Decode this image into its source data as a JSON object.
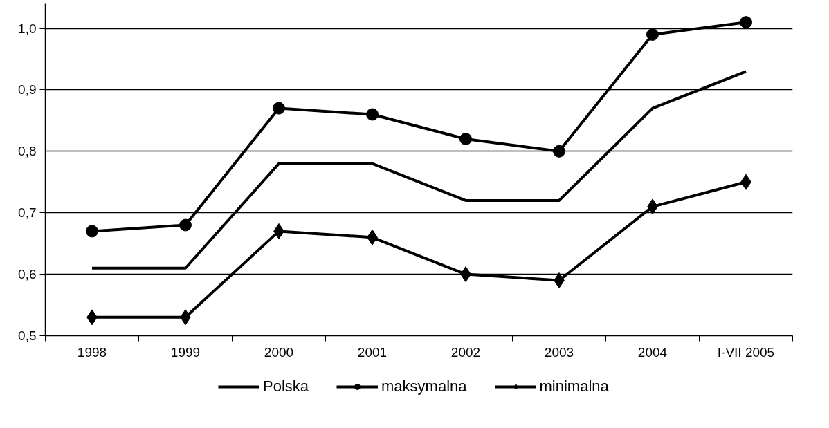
{
  "chart_data": {
    "type": "line",
    "categories": [
      "1998",
      "1999",
      "2000",
      "2001",
      "2002",
      "2003",
      "2004",
      "I-VII 2005"
    ],
    "series": [
      {
        "name": "Polska",
        "color": "#000000",
        "marker": "none",
        "values": [
          0.61,
          0.61,
          0.78,
          0.78,
          0.72,
          0.72,
          0.87,
          0.93
        ]
      },
      {
        "name": "maksymalna",
        "color": "#000000",
        "marker": "circle",
        "values": [
          0.67,
          0.68,
          0.87,
          0.86,
          0.82,
          0.8,
          0.99,
          1.01
        ]
      },
      {
        "name": "minimalna",
        "color": "#000000",
        "marker": "diamond",
        "values": [
          0.53,
          0.53,
          0.67,
          0.66,
          0.6,
          0.59,
          0.71,
          0.75
        ]
      }
    ],
    "ylim": [
      0.5,
      1.04
    ],
    "yticks": [
      {
        "value": 0.5,
        "label": "0,5"
      },
      {
        "value": 0.6,
        "label": "0,6"
      },
      {
        "value": 0.7,
        "label": "0,7"
      },
      {
        "value": 0.8,
        "label": "0,8"
      },
      {
        "value": 0.9,
        "label": "0,9"
      },
      {
        "value": 1.0,
        "label": "1,0"
      }
    ],
    "grid": "y",
    "legend": "bottom",
    "line_style": "solid"
  }
}
